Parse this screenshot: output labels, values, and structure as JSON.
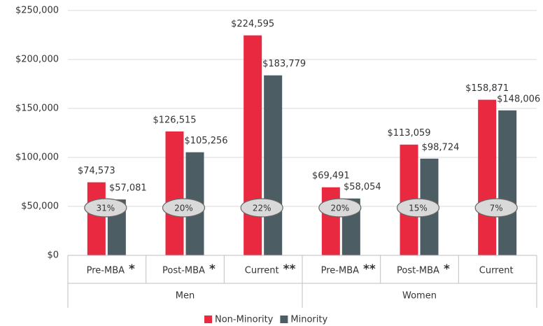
{
  "chart_data": {
    "type": "bar",
    "categories": [
      "Pre-MBA",
      "Post-MBA",
      "Current",
      "Pre-MBA",
      "Post-MBA",
      "Current"
    ],
    "groups": [
      "Men",
      "Women"
    ],
    "series": [
      {
        "name": "Non-Minority",
        "color": "#e8293f",
        "values": [
          74573,
          126515,
          224595,
          69491,
          113059,
          158871
        ],
        "value_labels": [
          "$74,573",
          "$126,515",
          "$224,595",
          "$69,491",
          "$113,059",
          "$158,871"
        ]
      },
      {
        "name": "Minority",
        "color": "#4d5d64",
        "values": [
          57081,
          105256,
          183779,
          58054,
          98724,
          148006
        ],
        "value_labels": [
          "$57,081",
          "$105,256",
          "$183,779",
          "$58,054",
          "$98,724",
          "$148,006"
        ]
      }
    ],
    "gap_labels": [
      "31%",
      "20%",
      "22%",
      "20%",
      "15%",
      "7%"
    ],
    "significance": [
      "*",
      "*",
      "**",
      "**",
      "*",
      null
    ],
    "ylim": [
      0,
      250000
    ],
    "yticks": [
      {
        "value": 0,
        "label": "$0"
      },
      {
        "value": 50000,
        "label": "$50,000"
      },
      {
        "value": 100000,
        "label": "$100,000"
      },
      {
        "value": 150000,
        "label": "$150,000"
      },
      {
        "value": 200000,
        "label": "$200,000"
      },
      {
        "value": 250000,
        "label": "$250,000"
      }
    ],
    "grid": true,
    "legend": "bottom"
  }
}
